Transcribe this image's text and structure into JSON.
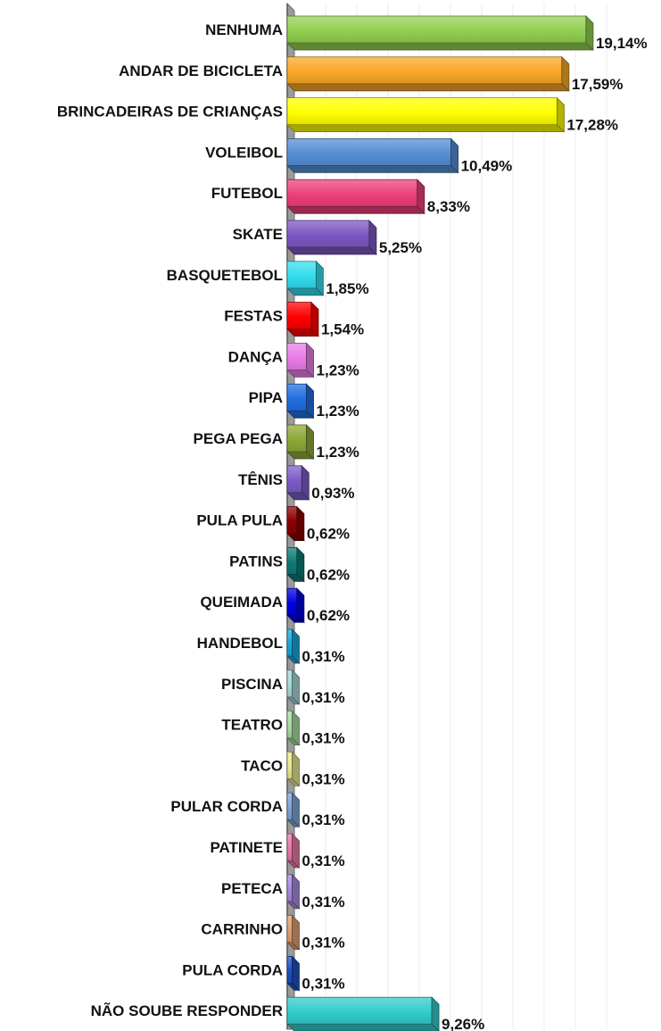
{
  "chart_data": {
    "type": "bar",
    "orientation": "horizontal",
    "style": "3d",
    "title": "",
    "xlabel": "",
    "ylabel": "",
    "xlim": [
      0,
      20
    ],
    "grid": "vertical",
    "legend": "none",
    "categories": [
      "NENHUMA",
      "ANDAR DE BICICLETA",
      "BRINCADEIRAS DE CRIANÇAS",
      "VOLEIBOL",
      "FUTEBOL",
      "SKATE",
      "BASQUETEBOL",
      "FESTAS",
      "DANÇA",
      "PIPA",
      "PEGA PEGA",
      "TÊNIS",
      "PULA PULA",
      "PATINS",
      "QUEIMADA",
      "HANDEBOL",
      "PISCINA",
      "TEATRO",
      "TACO",
      "PULAR CORDA",
      "PATINETE",
      "PETECA",
      "CARRINHO",
      "PULA CORDA",
      "NÃO SOUBE RESPONDER"
    ],
    "values": [
      19.14,
      17.59,
      17.28,
      10.49,
      8.33,
      5.25,
      1.85,
      1.54,
      1.23,
      1.23,
      1.23,
      0.93,
      0.62,
      0.62,
      0.62,
      0.31,
      0.31,
      0.31,
      0.31,
      0.31,
      0.31,
      0.31,
      0.31,
      0.31,
      9.26
    ],
    "data_labels": [
      "19,14%",
      "17,59%",
      "17,28%",
      "10,49%",
      "8,33%",
      "5,25%",
      "1,85%",
      "1,54%",
      "1,23%",
      "1,23%",
      "1,23%",
      "0,93%",
      "0,62%",
      "0,62%",
      "0,62%",
      "0,31%",
      "0,31%",
      "0,31%",
      "0,31%",
      "0,31%",
      "0,31%",
      "0,31%",
      "0,31%",
      "0,31%",
      "9,26%"
    ],
    "colors": [
      "#92d050",
      "#f9a826",
      "#ffff00",
      "#558ed5",
      "#ec407a",
      "#7e57c2",
      "#33ddee",
      "#ff0000",
      "#e87de8",
      "#1f6fe0",
      "#8fa837",
      "#7c5cc4",
      "#8b0000",
      "#0e7a75",
      "#0000e0",
      "#1aa7d9",
      "#a8d8d8",
      "#a8dca0",
      "#e8e890",
      "#7ea6d8",
      "#e87aa8",
      "#a98ae0",
      "#e0a070",
      "#2050c0",
      "#33cccc"
    ]
  }
}
